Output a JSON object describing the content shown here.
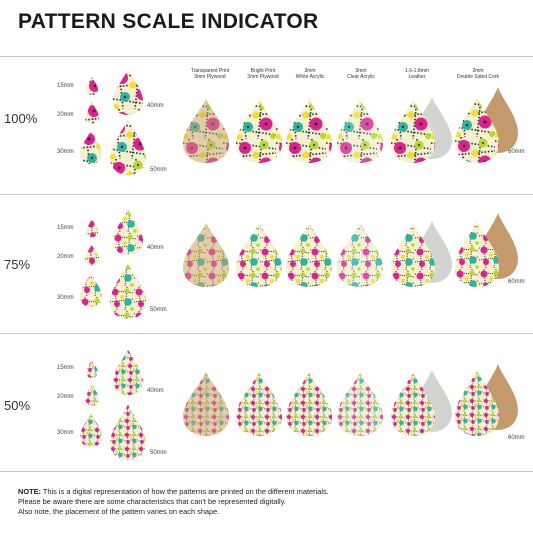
{
  "title": "PATTERN SCALE INDICATOR",
  "rows": [
    {
      "scale": "100%",
      "sizes": [
        "15mm",
        "20mm",
        "30mm",
        "40mm",
        "50mm"
      ],
      "large_label": "60mm"
    },
    {
      "scale": "75%",
      "sizes": [
        "15mm",
        "20mm",
        "30mm",
        "40mm",
        "50mm"
      ],
      "large_label": "60mm"
    },
    {
      "scale": "50%",
      "sizes": [
        "15mm",
        "20mm",
        "30mm",
        "40mm",
        "50mm"
      ],
      "large_label": "60mm"
    }
  ],
  "materials": [
    {
      "line1": "Transparent Print",
      "line2": "3mm Plywood"
    },
    {
      "line1": "Bright Print",
      "line2": "3mm Plywood"
    },
    {
      "line1": "3mm",
      "line2": "White Acrylic"
    },
    {
      "line1": "3mm",
      "line2": "Clear Acrylic"
    },
    {
      "line1": "1.6-1.8mm",
      "line2": "Leather"
    },
    {
      "line1": "2mm",
      "line2": "Double Sided Cork"
    }
  ],
  "note": {
    "label": "NOTE:",
    "line1": " This is a digital representation of how the patterns are printed on the different materials.",
    "line2": "Please be aware there are some characteristics that can't be represented digitally.",
    "line3": "Also note, the placement of the pattern varies on each shape."
  },
  "colors": {
    "pink": "#e0208f",
    "lime": "#b6d82a",
    "teal": "#2bb59c",
    "yellow": "#f3df2a",
    "navy": "#1d2840",
    "cream": "#f6f0cf",
    "wood": "#c9a27a",
    "leather": "#d2d4d0",
    "cork": "#c49a6c"
  }
}
